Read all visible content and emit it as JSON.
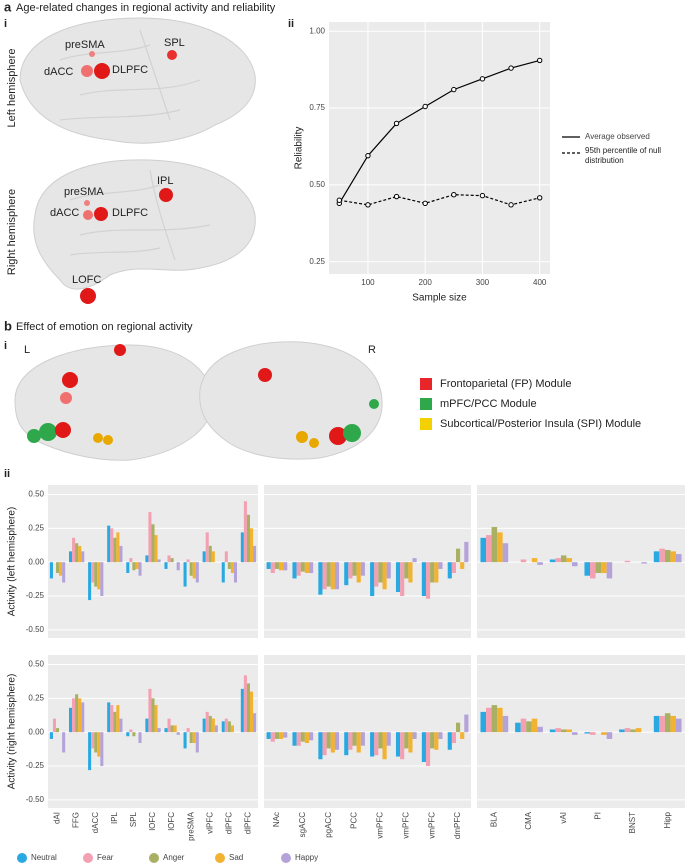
{
  "figure": {
    "panel_a": {
      "letter": "a",
      "title": "Age-related changes in regional activity and reliability",
      "sub_i": "i",
      "sub_ii": "ii",
      "left_hemisphere": "Left hemisphere",
      "right_hemisphere": "Right hemisphere",
      "left_labels": [
        "preSMA",
        "SPL",
        "dACC",
        "DLPFC"
      ],
      "right_labels": [
        "preSMA",
        "IPL",
        "dACC",
        "DLPFC",
        "LOFC"
      ]
    },
    "panel_b": {
      "letter": "b",
      "title": "Effect of emotion on regional activity",
      "sub_i": "i",
      "sub_ii": "ii",
      "left": "L",
      "right": "R",
      "modules": [
        {
          "name": "Frontoparietal (FP) Module",
          "color": "#e8262a"
        },
        {
          "name": "mPFC/PCC Module",
          "color": "#2ea84a"
        },
        {
          "name": "Subcortical/Posterior Insula (SPI) Module",
          "color": "#f5d000"
        }
      ]
    }
  },
  "chart_data": [
    {
      "type": "line",
      "xlabel": "Sample size",
      "ylabel": "Reliability",
      "x": [
        50,
        100,
        150,
        200,
        250,
        300,
        350,
        400
      ],
      "series": [
        {
          "name": "Average observed",
          "color": "#000000",
          "style": "solid",
          "values": [
            0.44,
            0.595,
            0.7,
            0.755,
            0.81,
            0.845,
            0.88,
            0.905
          ]
        },
        {
          "name": "95th percentile of null distribution",
          "color": "#000000",
          "style": "dashed",
          "values": [
            0.45,
            0.435,
            0.462,
            0.44,
            0.468,
            0.465,
            0.435,
            0.458
          ]
        }
      ],
      "xlim": [
        32,
        418
      ],
      "xticks": [
        100,
        200,
        300,
        400
      ],
      "ylim": [
        0.21,
        1.03
      ],
      "yticks": [
        {
          "value": 0.25,
          "label": "0.25"
        },
        {
          "value": 0.5,
          "label": "0.50"
        },
        {
          "value": 0.75,
          "label": "0.75"
        },
        {
          "value": 1,
          "label": "1.00"
        }
      ],
      "grid": true
    },
    {
      "type": "bar",
      "ylabel": "Activity (left hemisphere)",
      "ylim": [
        -0.56,
        0.57
      ],
      "yticks": [
        {
          "value": -0.5,
          "label": "-0.50"
        },
        {
          "value": -0.25,
          "label": "-0.25"
        },
        {
          "value": 0,
          "label": "0.00"
        },
        {
          "value": 0.25,
          "label": "0.25"
        },
        {
          "value": 0.5,
          "label": "0.50"
        }
      ],
      "grid": true,
      "series": [
        {
          "name": "Neutral",
          "color": "#29a9e1",
          "values": [
            -0.12,
            0.08,
            -0.28,
            0.27,
            -0.08,
            0.05,
            -0.05,
            -0.18,
            0.08,
            -0.15,
            0.22
          ]
        },
        {
          "name": "Fear",
          "color": "#f3a0b2",
          "values": [
            0.0,
            0.18,
            -0.15,
            0.25,
            0.03,
            0.37,
            0.05,
            0.02,
            0.22,
            0.08,
            0.45
          ]
        },
        {
          "name": "Anger",
          "color": "#a9b063",
          "values": [
            -0.08,
            0.14,
            -0.18,
            0.18,
            -0.06,
            0.28,
            0.03,
            -0.1,
            0.12,
            -0.05,
            0.35
          ]
        },
        {
          "name": "Sad",
          "color": "#f2b232",
          "values": [
            -0.1,
            0.12,
            -0.2,
            0.22,
            -0.05,
            0.2,
            0.0,
            -0.12,
            0.08,
            -0.08,
            0.25
          ]
        },
        {
          "name": "Happy",
          "color": "#b3a3d8",
          "values": [
            -0.15,
            0.08,
            -0.25,
            0.12,
            -0.1,
            0.02,
            -0.06,
            -0.15,
            0.0,
            -0.15,
            0.12
          ]
        }
      ]
    },
    {
      "type": "bar",
      "ylim": [
        -0.56,
        0.57
      ],
      "grid": true,
      "series": [
        {
          "name": "Neutral",
          "color": "#29a9e1",
          "values": [
            -0.05,
            -0.12,
            -0.24,
            -0.17,
            -0.25,
            -0.22,
            -0.25,
            -0.12
          ]
        },
        {
          "name": "Fear",
          "color": "#f3a0b2",
          "values": [
            -0.08,
            -0.1,
            -0.2,
            -0.12,
            -0.18,
            -0.25,
            -0.27,
            -0.08
          ]
        },
        {
          "name": "Anger",
          "color": "#a9b063",
          "values": [
            -0.05,
            -0.07,
            -0.18,
            -0.1,
            -0.15,
            -0.12,
            -0.15,
            0.1
          ]
        },
        {
          "name": "Sad",
          "color": "#f2b232",
          "values": [
            -0.06,
            -0.08,
            -0.2,
            -0.15,
            -0.2,
            -0.15,
            -0.15,
            -0.05
          ]
        },
        {
          "name": "Happy",
          "color": "#b3a3d8",
          "values": [
            -0.06,
            -0.08,
            -0.2,
            -0.1,
            -0.12,
            0.03,
            -0.05,
            0.15
          ]
        }
      ]
    },
    {
      "type": "bar",
      "ylim": [
        -0.56,
        0.57
      ],
      "grid": true,
      "series": [
        {
          "name": "Neutral",
          "color": "#29a9e1",
          "values": [
            0.18,
            0.0,
            0.02,
            -0.1,
            0.0,
            0.08
          ]
        },
        {
          "name": "Fear",
          "color": "#f3a0b2",
          "values": [
            0.2,
            0.02,
            0.03,
            -0.12,
            0.01,
            0.1
          ]
        },
        {
          "name": "Anger",
          "color": "#a9b063",
          "values": [
            0.26,
            0.0,
            0.05,
            -0.08,
            0.0,
            0.09
          ]
        },
        {
          "name": "Sad",
          "color": "#f2b232",
          "values": [
            0.22,
            0.03,
            0.03,
            -0.08,
            0.0,
            0.08
          ]
        },
        {
          "name": "Happy",
          "color": "#b3a3d8",
          "values": [
            0.14,
            -0.02,
            -0.03,
            -0.12,
            -0.01,
            0.06
          ]
        }
      ]
    },
    {
      "type": "bar",
      "ylabel": "Activity (right hemisphere)",
      "ylim": [
        -0.56,
        0.57
      ],
      "yticks": [
        {
          "value": -0.5,
          "label": "-0.50"
        },
        {
          "value": -0.25,
          "label": "-0.25"
        },
        {
          "value": 0,
          "label": "0.00"
        },
        {
          "value": 0.25,
          "label": "0.25"
        },
        {
          "value": 0.5,
          "label": "0.50"
        }
      ],
      "grid": true,
      "categories": [
        "dAI",
        "FFG",
        "dACC",
        "IPL",
        "SPL",
        "lOFC",
        "lOFC",
        "preSMA",
        "vlPFC",
        "dlPFC",
        "dlPFC"
      ],
      "series": [
        {
          "name": "Neutral",
          "color": "#29a9e1",
          "values": [
            -0.05,
            0.18,
            -0.28,
            0.22,
            -0.03,
            0.1,
            0.03,
            -0.12,
            0.1,
            0.08,
            0.32
          ]
        },
        {
          "name": "Fear",
          "color": "#f3a0b2",
          "values": [
            0.1,
            0.25,
            -0.12,
            0.2,
            0.02,
            0.32,
            0.1,
            0.03,
            0.15,
            0.1,
            0.42
          ]
        },
        {
          "name": "Anger",
          "color": "#a9b063",
          "values": [
            0.03,
            0.28,
            -0.15,
            0.15,
            -0.03,
            0.25,
            0.05,
            -0.08,
            0.12,
            0.08,
            0.36
          ]
        },
        {
          "name": "Sad",
          "color": "#f2b232",
          "values": [
            0.0,
            0.25,
            -0.18,
            0.2,
            0.0,
            0.2,
            0.05,
            -0.08,
            0.1,
            0.05,
            0.3
          ]
        },
        {
          "name": "Happy",
          "color": "#b3a3d8",
          "values": [
            -0.15,
            0.22,
            -0.25,
            0.1,
            -0.08,
            0.03,
            -0.02,
            -0.15,
            0.05,
            0.0,
            0.14
          ]
        }
      ]
    },
    {
      "type": "bar",
      "ylim": [
        -0.56,
        0.57
      ],
      "grid": true,
      "categories": [
        "NAc",
        "sgACC",
        "pgACC",
        "PCC",
        "vmPFC",
        "vmPFC",
        "vmPFC",
        "dmPFC"
      ],
      "series": [
        {
          "name": "Neutral",
          "color": "#29a9e1",
          "values": [
            -0.05,
            -0.1,
            -0.2,
            -0.17,
            -0.18,
            -0.18,
            -0.22,
            -0.13
          ]
        },
        {
          "name": "Fear",
          "color": "#f3a0b2",
          "values": [
            -0.07,
            -0.1,
            -0.17,
            -0.13,
            -0.17,
            -0.2,
            -0.25,
            -0.08
          ]
        },
        {
          "name": "Anger",
          "color": "#a9b063",
          "values": [
            -0.05,
            -0.07,
            -0.12,
            -0.1,
            -0.12,
            -0.12,
            -0.12,
            0.07
          ]
        },
        {
          "name": "Sad",
          "color": "#f2b232",
          "values": [
            -0.05,
            -0.08,
            -0.15,
            -0.15,
            -0.2,
            -0.15,
            -0.13,
            -0.05
          ]
        },
        {
          "name": "Happy",
          "color": "#b3a3d8",
          "values": [
            -0.04,
            -0.06,
            -0.13,
            -0.1,
            -0.1,
            -0.05,
            -0.05,
            0.13
          ]
        }
      ]
    },
    {
      "type": "bar",
      "ylim": [
        -0.56,
        0.57
      ],
      "grid": true,
      "categories": [
        "BLA",
        "CMA",
        "vAI",
        "PI",
        "BNST",
        "Hipp"
      ],
      "series": [
        {
          "name": "Neutral",
          "color": "#29a9e1",
          "values": [
            0.15,
            0.07,
            0.02,
            -0.01,
            0.02,
            0.12
          ]
        },
        {
          "name": "Fear",
          "color": "#f3a0b2",
          "values": [
            0.18,
            0.1,
            0.03,
            -0.02,
            0.03,
            0.12
          ]
        },
        {
          "name": "Anger",
          "color": "#a9b063",
          "values": [
            0.2,
            0.08,
            0.02,
            0.0,
            0.02,
            0.14
          ]
        },
        {
          "name": "Sad",
          "color": "#f2b232",
          "values": [
            0.18,
            0.1,
            0.02,
            -0.02,
            0.03,
            0.12
          ]
        },
        {
          "name": "Happy",
          "color": "#b3a3d8",
          "values": [
            0.12,
            0.04,
            -0.02,
            -0.05,
            0.0,
            0.1
          ]
        }
      ]
    }
  ]
}
